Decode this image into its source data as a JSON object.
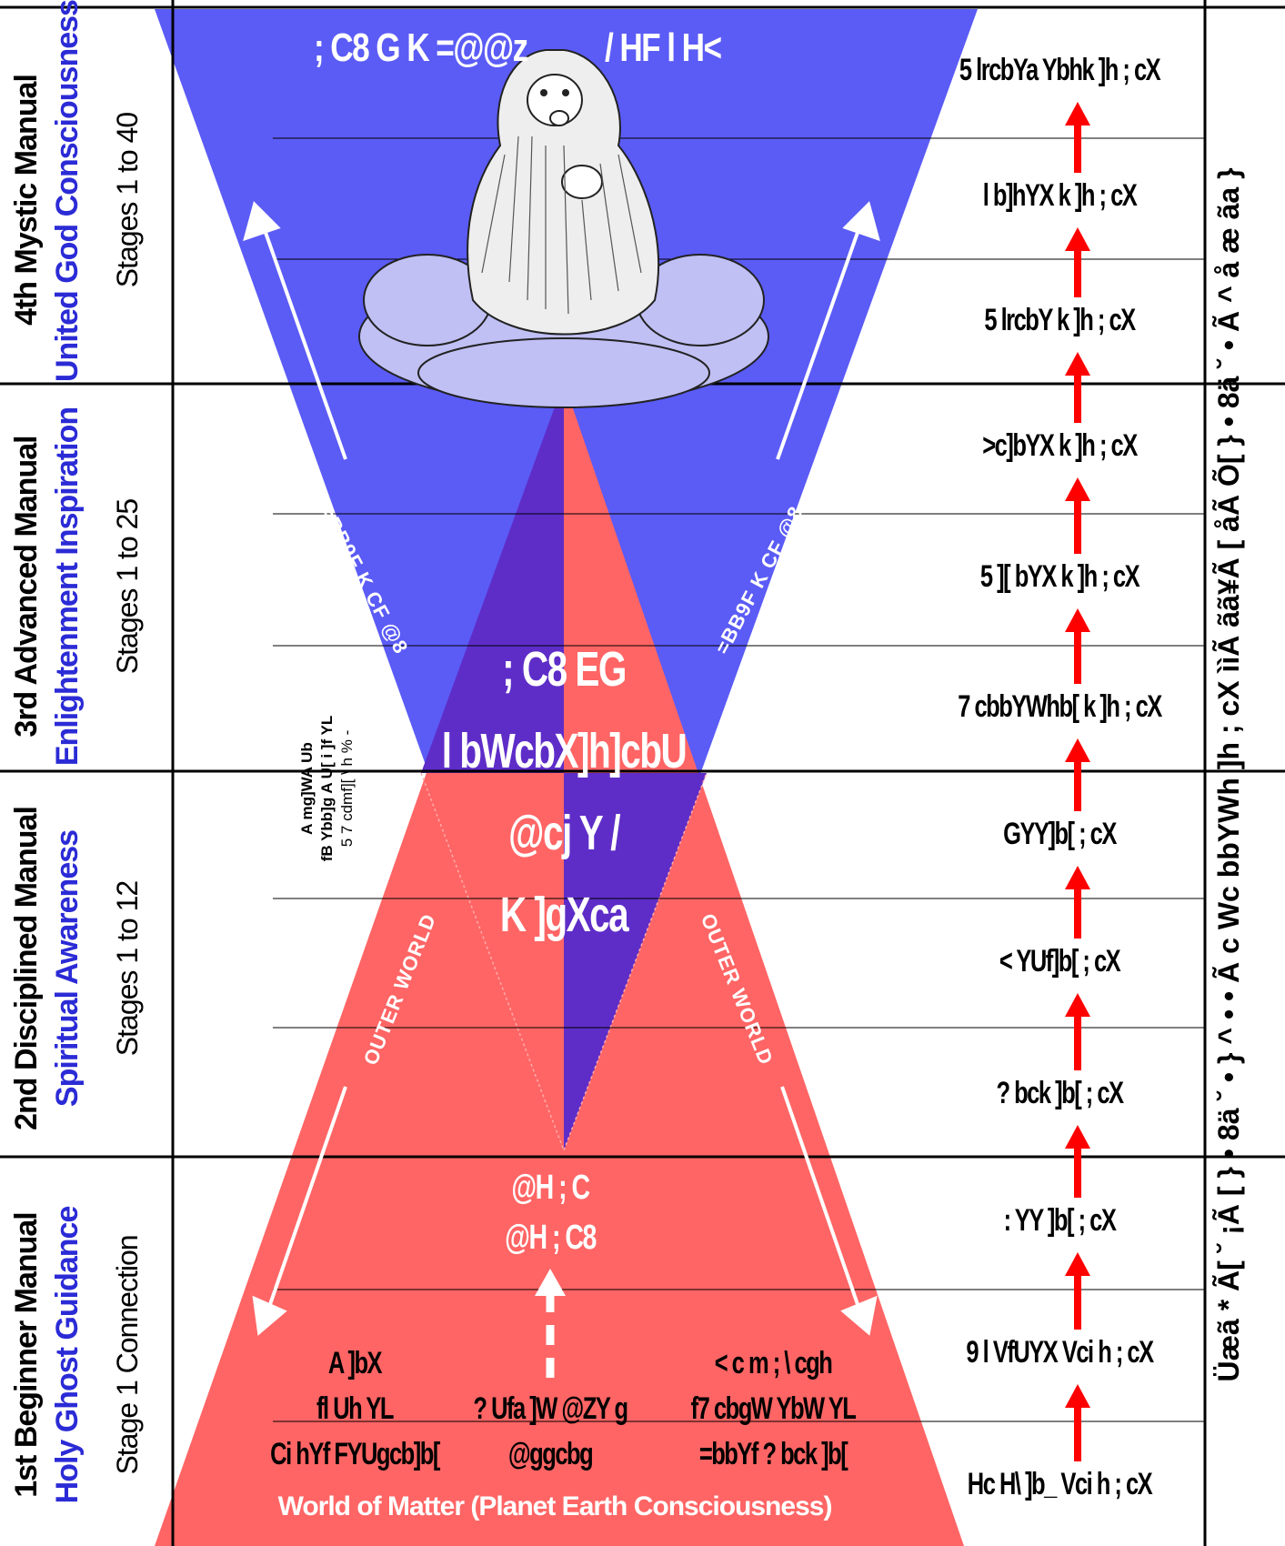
{
  "manuals": [
    {
      "name": "4th Mystic Manual",
      "consciousness": "United God Consciousness",
      "stages": "Stages 1 to 40"
    },
    {
      "name": "3rd Advanced Manual",
      "consciousness": "Enlightenment Inspiration",
      "stages": "Stages 1 to 25"
    },
    {
      "name": "2nd Disciplined Manual",
      "consciousness": "Spiritual Awareness",
      "stages": "Stages 1 to 12"
    },
    {
      "name": "1st Beginner Manual",
      "consciousness": "Holy Ghost Guidance",
      "stages": "Stage 1 Connection"
    }
  ],
  "levels": [
    "5 lrcbYa Ybhk ]h ; cX",
    "l b]hYX k ]h ; cX",
    "5 lrcbY k ]h ; cX",
    ">c]bYX k ]h ; cX",
    "5 ][ bYX k ]h ; cX",
    "7 cbbYWhb[ k ]h ; cX",
    "GYY]b[ ; cX",
    "< YUf]b[ ; cX",
    "? bck ]b[ ; cX",
    ": YY ]b[ ; cX",
    "9 l VfUYX Vci h ; cX",
    "Hc H\\ ]b_ Vci h ; cX"
  ],
  "center": {
    "top_left": "; C8 G K =@@z",
    "top_right": "/ HF l H<",
    "middle_lines": [
      "; C8 EG",
      "l bWcbX]h]cbU",
      "@cj Y /",
      "K ]gXca"
    ],
    "lower_lines": [
      "@H ; C",
      "@H ; C8"
    ],
    "bottom_left": [
      "A ]bX",
      "fl Uh YL",
      "Ci hYf FYUgcb]b["
    ],
    "bottom_center": [
      "? Ufa ]W @ZY g",
      "@ggcbg"
    ],
    "bottom_right": [
      "< c m ; \\ cgh",
      "f7 cbgW YbW YL",
      "=bbYf ? bck ]b["
    ],
    "side_note": [
      "A mg]WA Ub",
      "fB Ybb]g A U[ i ]f YL",
      "5 7 cdmf][ \\ h % - "
    ],
    "inner_world": "=BB9F K CF @8",
    "outer_world": "OUTER WORLD",
    "world_of_matter": "World of Matter (Planet Earth Consciousness)"
  },
  "right_margin": "Üæã * Ã[ ˘ ¡Ã [ } • 8ä ˘ • } ^ • • Ã c Wc bbYWh ]h ; cX ììÃ ãã¥Ã [ åÃ Õ[ } • 8ä ˘ • Ã ^ å æ ãa } ",
  "colors": {
    "upper_triangle": "#5b5bf6",
    "lower_triangle": "#ff6565",
    "overlap": "#5e2dc8",
    "cloud": "#c0c0f5",
    "arrow_red": "#ff0000",
    "manual_blue": "#2b2bd6"
  }
}
